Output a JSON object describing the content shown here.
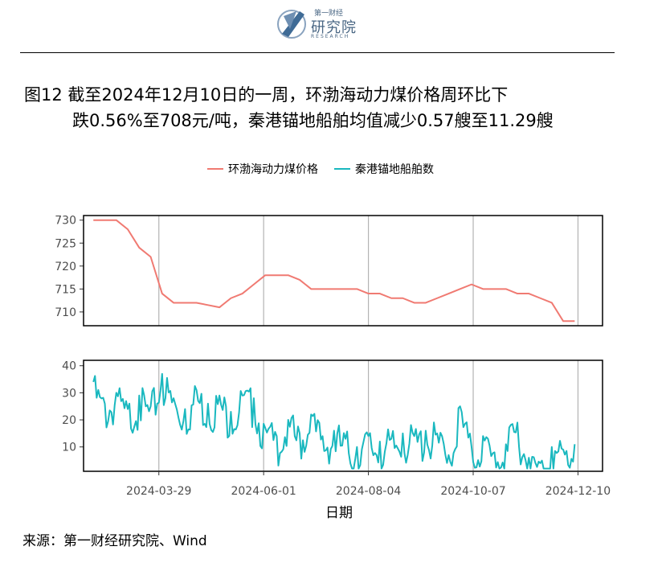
{
  "logo": {
    "top_text": "第一财经",
    "name": "研究院",
    "en": "RESEARCH"
  },
  "title": {
    "line1": "图12  截至2024年12月10日的一周，环渤海动力煤价格周环比下",
    "line2": "跌0.56%至708元/吨，秦港锚地船舶均值减少0.57艘至11.29艘"
  },
  "legend": [
    {
      "label": "环渤海动力煤价格",
      "color": "#F07A72"
    },
    {
      "label": "秦港锚地船舶数",
      "color": "#1AB8BF"
    }
  ],
  "chart_data": {
    "type": "line",
    "x_title": "日期",
    "x_ticks": [
      "2024-03-29",
      "2024-06-01",
      "2024-08-04",
      "2024-10-07",
      "2024-12-10"
    ],
    "x_range": [
      "2024-02-12",
      "2024-12-25"
    ],
    "panels": [
      {
        "name": "环渤海动力煤价格",
        "color": "#F07A72",
        "ylim": [
          707,
          731
        ],
        "yticks": [
          710,
          715,
          720,
          725,
          730
        ],
        "dates": [
          "2024-02-18",
          "2024-02-25",
          "2024-03-03",
          "2024-03-10",
          "2024-03-17",
          "2024-03-24",
          "2024-03-31",
          "2024-04-07",
          "2024-04-14",
          "2024-04-21",
          "2024-04-28",
          "2024-05-05",
          "2024-05-12",
          "2024-05-19",
          "2024-05-26",
          "2024-06-02",
          "2024-06-09",
          "2024-06-16",
          "2024-06-23",
          "2024-06-30",
          "2024-07-07",
          "2024-07-14",
          "2024-07-21",
          "2024-07-28",
          "2024-08-04",
          "2024-08-11",
          "2024-08-18",
          "2024-08-25",
          "2024-09-01",
          "2024-09-08",
          "2024-09-15",
          "2024-09-22",
          "2024-09-29",
          "2024-10-06",
          "2024-10-13",
          "2024-10-20",
          "2024-10-27",
          "2024-11-03",
          "2024-11-10",
          "2024-11-17",
          "2024-11-24",
          "2024-12-01",
          "2024-12-08"
        ],
        "values": [
          730,
          730,
          730,
          728,
          724,
          722,
          714,
          712,
          712,
          712,
          711.5,
          711,
          713,
          714,
          716,
          718,
          718,
          718,
          717,
          715,
          715,
          715,
          715,
          715,
          714,
          714,
          713,
          713,
          712,
          712,
          713,
          714,
          715,
          716,
          715,
          715,
          715,
          714,
          714,
          713,
          712,
          708,
          708
        ]
      },
      {
        "name": "秦港锚地船舶数",
        "color": "#1AB8BF",
        "ylim": [
          1,
          42
        ],
        "yticks": [
          10,
          20,
          30,
          40
        ],
        "dates": [
          "2024-02-18",
          "2024-02-25",
          "2024-03-03",
          "2024-03-10",
          "2024-03-17",
          "2024-03-24",
          "2024-03-31",
          "2024-04-07",
          "2024-04-14",
          "2024-04-21",
          "2024-04-28",
          "2024-05-05",
          "2024-05-12",
          "2024-05-19",
          "2024-05-26",
          "2024-06-02",
          "2024-06-09",
          "2024-06-16",
          "2024-06-23",
          "2024-06-30",
          "2024-07-07",
          "2024-07-14",
          "2024-07-21",
          "2024-07-28",
          "2024-08-04",
          "2024-08-11",
          "2024-08-18",
          "2024-08-25",
          "2024-09-01",
          "2024-09-08",
          "2024-09-15",
          "2024-09-22",
          "2024-09-29",
          "2024-10-06",
          "2024-10-13",
          "2024-10-20",
          "2024-10-27",
          "2024-11-03",
          "2024-11-10",
          "2024-11-17",
          "2024-11-24",
          "2024-12-01",
          "2024-12-08"
        ],
        "values": [
          34,
          26,
          30,
          24,
          29,
          25,
          37,
          28,
          24,
          31,
          26,
          29,
          23,
          29,
          28,
          17,
          14,
          20,
          15,
          22,
          14,
          16,
          13,
          10,
          14,
          12,
          13,
          15,
          14,
          16,
          15,
          7,
          25,
          10,
          14,
          8,
          11,
          19,
          6,
          4,
          10,
          9,
          11
        ]
      }
    ]
  },
  "source": "来源：第一财经研究院、Wind"
}
